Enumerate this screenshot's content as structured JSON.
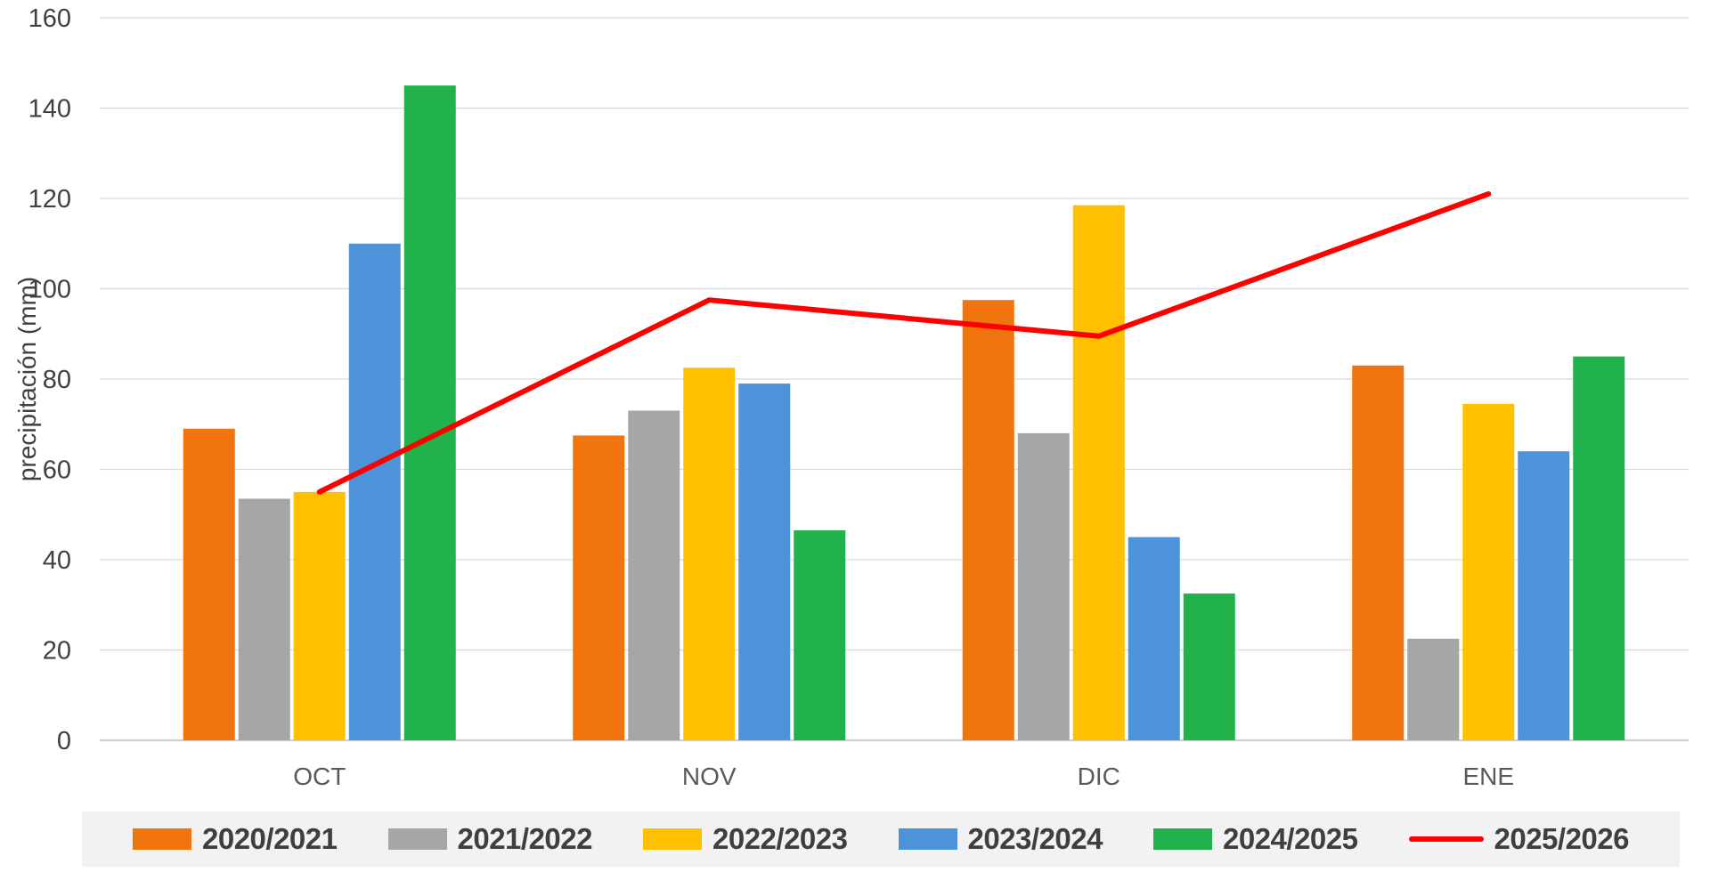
{
  "chart_data": {
    "type": "bar",
    "subtype": "grouped-bars-with-line-overlay",
    "title": "",
    "xlabel": "",
    "ylabel": "precipitación (mm)",
    "categories": [
      "OCT",
      "NOV",
      "DIC",
      "ENE"
    ],
    "series": [
      {
        "name": "2020/2021",
        "type": "bar",
        "color": "#F0750F",
        "values": [
          69,
          67.5,
          97.5,
          83
        ]
      },
      {
        "name": "2021/2022",
        "type": "bar",
        "color": "#A6A6A6",
        "values": [
          53.5,
          73,
          68,
          22.5
        ]
      },
      {
        "name": "2022/2023",
        "type": "bar",
        "color": "#FFC000",
        "values": [
          55,
          82.5,
          118.5,
          74.5
        ]
      },
      {
        "name": "2023/2024",
        "type": "bar",
        "color": "#4D93D9",
        "values": [
          110,
          79,
          45,
          64
        ]
      },
      {
        "name": "2024/2025",
        "type": "bar",
        "color": "#21B24B",
        "values": [
          145,
          46.5,
          32.5,
          85
        ]
      },
      {
        "name": "2025/2026",
        "type": "line",
        "color": "#FF0000",
        "values": [
          55,
          97.5,
          89.5,
          121
        ]
      }
    ],
    "ylim": [
      0,
      160
    ],
    "yticks": [
      0,
      20,
      40,
      60,
      80,
      100,
      120,
      140,
      160
    ],
    "grid": true,
    "gridline_color": "#D9D9D9",
    "zero_axis_color": "#BFBFBF",
    "legend_position": "bottom",
    "legend_background": "#F2F2F2"
  }
}
